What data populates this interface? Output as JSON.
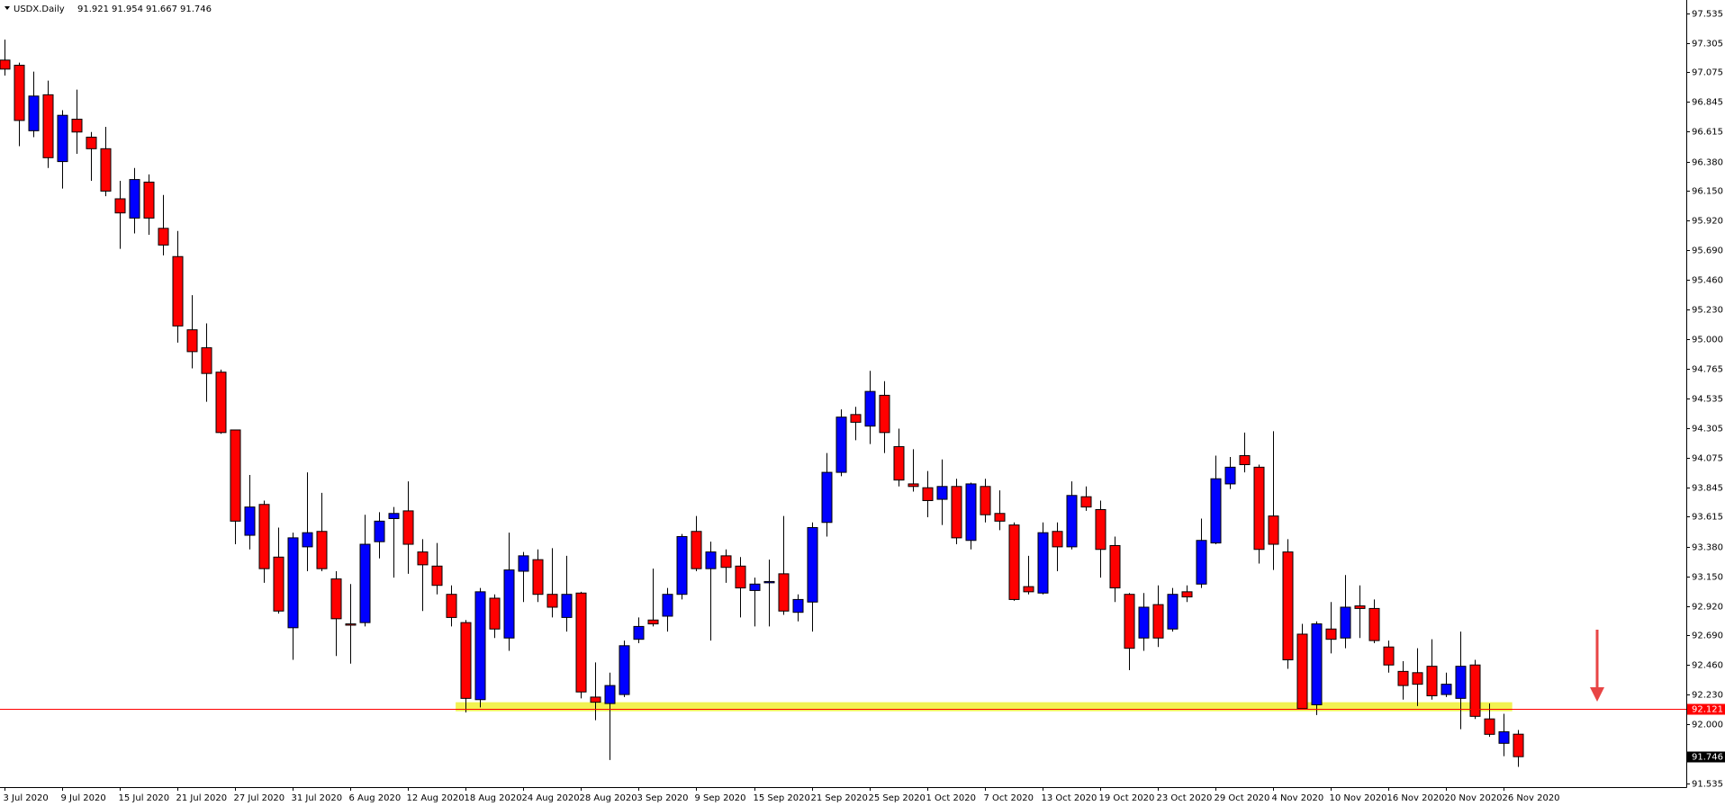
{
  "header": {
    "symbol": "USDX.Daily"
  },
  "chart_data": {
    "type": "candlestick",
    "up_color": "#0000ff",
    "down_color": "#ff0000",
    "categories": [
      "3 Jul 2020",
      null,
      null,
      null,
      "9 Jul 2020",
      null,
      null,
      null,
      "15 Jul 2020",
      null,
      null,
      null,
      "21 Jul 2020",
      null,
      null,
      null,
      "27 Jul 2020",
      null,
      null,
      null,
      "31 Jul 2020",
      null,
      null,
      null,
      "6 Aug 2020",
      null,
      null,
      null,
      "12 Aug 2020",
      null,
      null,
      null,
      "18 Aug 2020",
      null,
      null,
      null,
      "24 Aug 2020",
      null,
      null,
      null,
      "28 Aug 2020",
      null,
      null,
      null,
      "3 Sep 2020",
      null,
      null,
      null,
      "9 Sep 2020",
      null,
      null,
      null,
      "15 Sep 2020",
      null,
      null,
      null,
      "21 Sep 2020",
      null,
      null,
      null,
      "25 Sep 2020",
      null,
      null,
      null,
      "1 Oct 2020",
      null,
      null,
      null,
      "7 Oct 2020",
      null,
      null,
      null,
      "13 Oct 2020",
      null,
      null,
      null,
      "19 Oct 2020",
      null,
      null,
      null,
      "23 Oct 2020",
      null,
      null,
      null,
      "29 Oct 2020",
      null,
      null,
      null,
      "4 Nov 2020",
      null,
      null,
      null,
      "10 Nov 2020",
      null,
      null,
      null,
      "16 Nov 2020",
      null,
      null,
      null,
      "20 Nov 2020",
      null,
      null,
      null,
      "26 Nov 2020",
      null
    ],
    "open": [
      97.17,
      97.13,
      96.62,
      96.9,
      96.38,
      96.71,
      96.57,
      96.48,
      96.09,
      95.94,
      96.22,
      95.86,
      95.64,
      95.07,
      94.93,
      94.74,
      94.29,
      93.47,
      93.71,
      93.3,
      92.75,
      93.38,
      93.5,
      93.13,
      92.78,
      92.79,
      93.42,
      93.6,
      93.66,
      93.34,
      93.23,
      93.01,
      92.79,
      92.19,
      92.98,
      92.67,
      93.19,
      93.28,
      93.01,
      92.83,
      93.02,
      92.21,
      92.16,
      92.23,
      92.66,
      92.81,
      92.84,
      93.01,
      93.5,
      93.21,
      93.31,
      93.23,
      93.04,
      93.1,
      93.17,
      92.87,
      92.95,
      93.57,
      93.96,
      94.41,
      94.32,
      94.56,
      94.16,
      93.87,
      93.84,
      93.75,
      93.85,
      93.43,
      93.85,
      93.64,
      93.55,
      93.07,
      93.02,
      93.5,
      93.38,
      93.77,
      93.67,
      93.39,
      93.01,
      92.67,
      92.93,
      92.74,
      93.03,
      93.09,
      93.41,
      93.87,
      94.09,
      94.0,
      93.62,
      93.34,
      92.7,
      92.15,
      92.74,
      92.67,
      92.92,
      92.9,
      92.6,
      92.41,
      92.4,
      92.45,
      92.23,
      92.2,
      92.46,
      92.04,
      91.85,
      91.921
    ],
    "high": [
      97.33,
      97.15,
      97.08,
      97.01,
      96.78,
      96.94,
      96.61,
      96.65,
      96.23,
      96.33,
      96.28,
      96.12,
      95.84,
      95.34,
      95.12,
      94.76,
      94.29,
      93.94,
      93.74,
      93.53,
      93.49,
      93.96,
      93.8,
      93.19,
      93.09,
      93.63,
      93.65,
      93.69,
      93.89,
      93.44,
      93.41,
      93.08,
      92.81,
      93.06,
      93.01,
      93.49,
      93.34,
      93.36,
      93.37,
      93.31,
      93.03,
      92.48,
      92.4,
      92.65,
      92.83,
      93.21,
      93.06,
      93.48,
      93.62,
      93.42,
      93.36,
      93.3,
      93.14,
      93.28,
      93.62,
      93.01,
      93.57,
      94.11,
      94.45,
      94.47,
      94.75,
      94.67,
      94.3,
      94.14,
      93.97,
      94.06,
      93.91,
      93.88,
      93.91,
      93.82,
      93.57,
      93.31,
      93.57,
      93.57,
      93.89,
      93.85,
      93.74,
      93.46,
      93.02,
      93.02,
      93.08,
      93.06,
      93.08,
      93.6,
      94.09,
      94.08,
      94.27,
      94.02,
      94.28,
      93.44,
      92.78,
      92.8,
      92.95,
      93.16,
      93.08,
      92.97,
      92.65,
      92.49,
      92.59,
      92.66,
      92.4,
      92.72,
      92.5,
      92.16,
      92.08,
      91.954
    ],
    "low": [
      97.05,
      96.5,
      96.57,
      96.33,
      96.17,
      96.44,
      96.23,
      96.11,
      95.7,
      95.82,
      95.81,
      95.65,
      94.97,
      94.77,
      94.51,
      94.26,
      93.4,
      93.36,
      93.1,
      92.86,
      92.5,
      93.19,
      93.19,
      92.53,
      92.47,
      92.76,
      93.29,
      93.14,
      93.17,
      92.88,
      93.01,
      92.76,
      92.09,
      92.13,
      92.67,
      92.57,
      92.95,
      92.95,
      92.83,
      92.72,
      92.2,
      92.03,
      91.72,
      92.21,
      92.63,
      92.76,
      92.72,
      92.97,
      93.19,
      92.65,
      93.1,
      92.83,
      92.76,
      92.76,
      92.85,
      92.8,
      92.72,
      93.46,
      93.93,
      94.21,
      94.18,
      94.11,
      93.85,
      93.81,
      93.61,
      93.55,
      93.4,
      93.36,
      93.57,
      93.51,
      92.96,
      93.01,
      93.01,
      93.19,
      93.36,
      93.66,
      93.14,
      92.95,
      92.42,
      92.57,
      92.6,
      92.72,
      92.95,
      93.06,
      93.4,
      93.83,
      93.96,
      93.25,
      93.2,
      92.43,
      92.12,
      92.07,
      92.55,
      92.59,
      92.67,
      92.63,
      92.4,
      92.19,
      92.14,
      92.19,
      92.21,
      91.96,
      92.04,
      91.9,
      91.75,
      91.667
    ],
    "close": [
      97.1,
      96.7,
      96.89,
      96.41,
      96.74,
      96.61,
      96.48,
      96.15,
      95.98,
      96.24,
      95.94,
      95.73,
      95.1,
      94.9,
      94.73,
      94.27,
      93.58,
      93.69,
      93.21,
      92.88,
      93.45,
      93.49,
      93.21,
      92.82,
      92.77,
      93.4,
      93.58,
      93.64,
      93.4,
      93.24,
      93.08,
      92.83,
      92.2,
      93.03,
      92.74,
      93.2,
      93.31,
      93.01,
      92.91,
      93.01,
      92.25,
      92.17,
      92.3,
      92.61,
      92.76,
      92.78,
      93.01,
      93.46,
      93.21,
      93.34,
      93.22,
      93.06,
      93.09,
      93.11,
      92.88,
      92.97,
      93.53,
      93.96,
      94.39,
      94.35,
      94.59,
      94.27,
      93.9,
      93.85,
      93.74,
      93.85,
      93.45,
      93.87,
      93.63,
      93.58,
      92.97,
      93.03,
      93.49,
      93.38,
      93.78,
      93.69,
      93.36,
      93.06,
      92.59,
      92.91,
      92.67,
      93.01,
      92.99,
      93.43,
      93.91,
      94.0,
      94.02,
      93.36,
      93.4,
      92.5,
      92.12,
      92.78,
      92.66,
      92.91,
      92.9,
      92.65,
      92.46,
      92.3,
      92.31,
      92.22,
      92.31,
      92.45,
      92.06,
      91.92,
      91.94,
      91.746
    ],
    "ylim": [
      91.509,
      97.638
    ],
    "yticks": [
      97.535,
      97.305,
      97.075,
      96.845,
      96.615,
      {
        "value": 96.38,
        "label": "96.380"
      },
      {
        "value": 96.15,
        "label": "96.150"
      },
      {
        "value": 95.92,
        "label": "95.920"
      },
      {
        "value": 95.69,
        "label": "95.690"
      },
      {
        "value": 95.46,
        "label": "95.460"
      },
      {
        "value": 95.23,
        "label": "95.230"
      },
      {
        "value": 95,
        "label": "95.000"
      },
      94.765,
      94.535,
      94.305,
      94.075,
      93.845,
      93.615,
      {
        "value": 93.38,
        "label": "93.380"
      },
      {
        "value": 93.15,
        "label": "93.150"
      },
      {
        "value": 92.92,
        "label": "92.920"
      },
      {
        "value": 92.69,
        "label": "92.690"
      },
      {
        "value": 92.46,
        "label": "92.460"
      },
      {
        "value": 92.23,
        "label": "92.230"
      },
      {
        "value": 92,
        "label": "92.000"
      },
      91.535
    ],
    "price_line": 92.121,
    "price_line_color": "#ff0000",
    "zone": [
      92.1,
      92.17
    ],
    "zone_color": "#f0f032",
    "grid": false
  }
}
